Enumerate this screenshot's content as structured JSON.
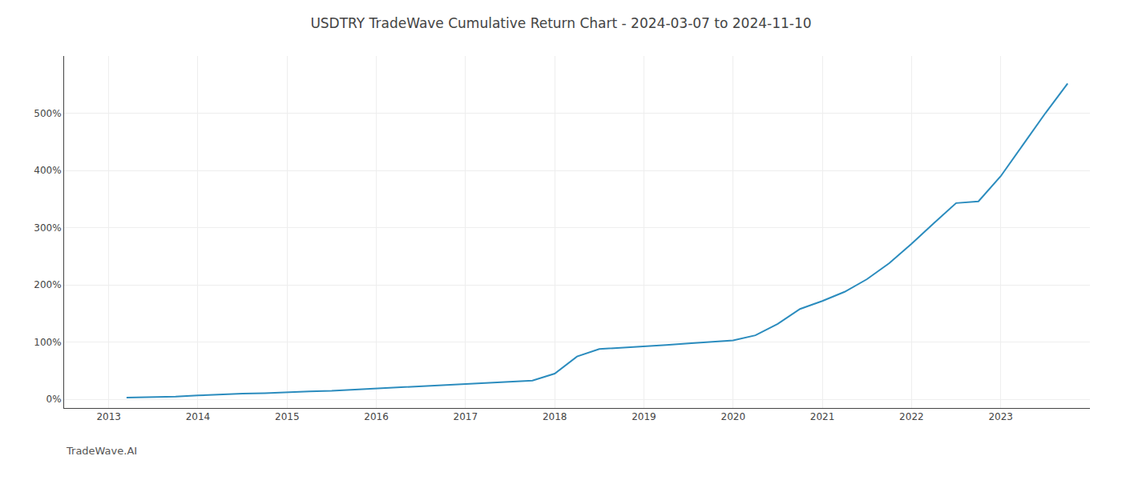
{
  "chart_data": {
    "type": "line",
    "title": "USDTRY TradeWave Cumulative Return Chart - 2024-03-07 to 2024-11-10",
    "annotations": [
      {
        "text": "TradeWave.AI"
      }
    ],
    "x": [
      2013.2,
      2013.5,
      2013.75,
      2014.0,
      2014.25,
      2014.5,
      2014.75,
      2015.0,
      2015.25,
      2015.5,
      2015.75,
      2016.0,
      2016.25,
      2016.5,
      2016.75,
      2017.0,
      2017.25,
      2017.5,
      2017.75,
      2018.0,
      2018.25,
      2018.5,
      2018.75,
      2019.0,
      2019.25,
      2019.5,
      2019.75,
      2020.0,
      2020.25,
      2020.5,
      2020.75,
      2021.0,
      2021.25,
      2021.5,
      2021.75,
      2022.0,
      2022.25,
      2022.5,
      2022.75,
      2023.0,
      2023.25,
      2023.5,
      2023.75
    ],
    "values": [
      3,
      4,
      5,
      7,
      9,
      10,
      11,
      13,
      14,
      15,
      17,
      20,
      22,
      24,
      26,
      28,
      30,
      32,
      33,
      45,
      75,
      88,
      90,
      92,
      95,
      98,
      100,
      103,
      112,
      132,
      158,
      172,
      188,
      210,
      238,
      272,
      308,
      343,
      346,
      390,
      445,
      500,
      552
    ],
    "color": "#2b8cbe",
    "xlim": [
      2012.5,
      2024.0
    ],
    "xticks": [
      2013,
      2014,
      2015,
      2016,
      2017,
      2018,
      2019,
      2020,
      2021,
      2022,
      2023
    ],
    "ylim": [
      -15,
      600
    ],
    "yticks": [
      {
        "value": 0,
        "label": "0%"
      },
      {
        "value": 100,
        "label": "100%"
      },
      {
        "value": 200,
        "label": "200%"
      },
      {
        "value": 300,
        "label": "300%"
      },
      {
        "value": 400,
        "label": "400%"
      },
      {
        "value": 500,
        "label": "500%"
      }
    ],
    "grid": true
  }
}
